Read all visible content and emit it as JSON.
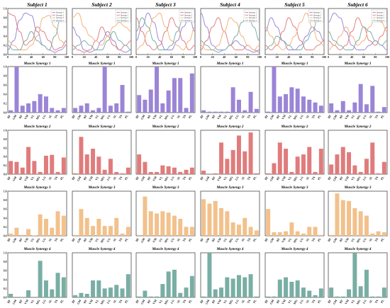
{
  "muscles": [
    "BF",
    "GM",
    "RF",
    "VM",
    "VL",
    "MG",
    "LG",
    "SL",
    "TA",
    "PL"
  ],
  "colors": [
    "#9b85d6",
    "#e07c7c",
    "#f2c18c",
    "#79aea4"
  ],
  "curve_colors": [
    "#9b85d6",
    "#e07c7c",
    "#f2b07a",
    "#79aea4"
  ],
  "legend_labels": [
    "Synergy 1",
    "Synergy 2",
    "Synergy 3",
    "Synergy 4"
  ],
  "x_ticks": [
    "0",
    "20",
    "40",
    "60",
    "80",
    "100"
  ],
  "y_ticks": [
    "0.0",
    "0.2",
    "0.4",
    "0.6",
    "0.8",
    "1.0"
  ],
  "subjects": [
    "Subject 1",
    "Subject 2",
    "Subject 3",
    "Subject 4",
    "Subject 5",
    "Subject 6"
  ],
  "synergy_titles": [
    "Muscle Synergy 1",
    "Muscle Synergy 2",
    "Muscle Synergy 3",
    "Muscle Synergy 4"
  ],
  "chart_data": {
    "type": "bar",
    "categories": [
      "BF",
      "GM",
      "RF",
      "VM",
      "VL",
      "MG",
      "LG",
      "SL",
      "TA",
      "PL"
    ],
    "ylim": [
      0,
      1
    ],
    "activation_curves": {
      "type": "line",
      "xlim": [
        0,
        100
      ],
      "ylim": [
        0,
        1
      ],
      "x": [
        0,
        10,
        20,
        30,
        40,
        50,
        60,
        70,
        80,
        90,
        100
      ],
      "subjects": [
        [
          [
            0.1,
            0.3,
            0.75,
            0.9,
            0.85,
            0.5,
            0.2,
            0.1,
            0.05,
            0.1,
            0.2
          ],
          [
            0.9,
            0.85,
            0.5,
            0.2,
            0.3,
            0.6,
            0.5,
            0.3,
            0.1,
            0.15,
            0.3
          ],
          [
            0.3,
            0.2,
            0.1,
            0.1,
            0.2,
            0.4,
            0.8,
            0.85,
            0.6,
            0.3,
            0.2
          ],
          [
            0.2,
            0.1,
            0.1,
            0.3,
            0.5,
            0.3,
            0.2,
            0.1,
            0.4,
            0.8,
            0.9
          ]
        ],
        [
          [
            0.6,
            0.4,
            0.1,
            0.05,
            0.1,
            0.3,
            0.5,
            0.3,
            0.1,
            0.05,
            0.1
          ],
          [
            0.2,
            0.1,
            0.05,
            0.1,
            0.3,
            0.6,
            0.4,
            0.2,
            0.1,
            0.2,
            0.3
          ],
          [
            0.8,
            0.9,
            0.6,
            0.4,
            0.3,
            0.2,
            0.4,
            0.6,
            0.7,
            0.6,
            0.5
          ],
          [
            0.1,
            0.2,
            0.3,
            0.2,
            0.1,
            0.1,
            0.3,
            0.5,
            0.3,
            0.2,
            0.1
          ]
        ],
        [
          [
            0.3,
            0.6,
            0.9,
            0.7,
            0.3,
            0.1,
            0.1,
            0.3,
            0.6,
            0.8,
            0.5
          ],
          [
            0.8,
            0.5,
            0.2,
            0.1,
            0.2,
            0.5,
            0.8,
            0.6,
            0.3,
            0.1,
            0.2
          ],
          [
            0.1,
            0.2,
            0.5,
            0.8,
            0.9,
            0.6,
            0.3,
            0.2,
            0.1,
            0.3,
            0.6
          ],
          [
            0.5,
            0.8,
            0.6,
            0.3,
            0.1,
            0.1,
            0.2,
            0.5,
            0.8,
            0.9,
            0.7
          ]
        ],
        [
          [
            0.9,
            0.6,
            0.2,
            0.1,
            0.1,
            0.2,
            0.3,
            0.2,
            0.1,
            0.05,
            0.1
          ],
          [
            0.1,
            0.3,
            0.6,
            0.8,
            0.5,
            0.2,
            0.1,
            0.1,
            0.2,
            0.1,
            0.05
          ],
          [
            0.2,
            0.1,
            0.1,
            0.2,
            0.5,
            0.8,
            0.7,
            0.4,
            0.2,
            0.1,
            0.2
          ],
          [
            0.3,
            0.2,
            0.1,
            0.05,
            0.1,
            0.2,
            0.4,
            0.7,
            0.9,
            0.6,
            0.3
          ]
        ],
        [
          [
            0.5,
            0.8,
            0.6,
            0.3,
            0.1,
            0.1,
            0.2,
            0.4,
            0.6,
            0.5,
            0.3
          ],
          [
            0.2,
            0.1,
            0.2,
            0.5,
            0.8,
            0.6,
            0.3,
            0.1,
            0.1,
            0.2,
            0.3
          ],
          [
            0.6,
            0.4,
            0.2,
            0.1,
            0.2,
            0.4,
            0.7,
            0.9,
            0.6,
            0.3,
            0.2
          ],
          [
            0.1,
            0.2,
            0.4,
            0.3,
            0.2,
            0.1,
            0.1,
            0.3,
            0.5,
            0.8,
            0.9
          ]
        ],
        [
          [
            0.7,
            0.9,
            0.8,
            0.5,
            0.2,
            0.1,
            0.1,
            0.2,
            0.3,
            0.2,
            0.1
          ],
          [
            0.3,
            0.2,
            0.1,
            0.2,
            0.5,
            0.8,
            0.6,
            0.3,
            0.2,
            0.4,
            0.6
          ],
          [
            0.1,
            0.2,
            0.4,
            0.6,
            0.4,
            0.2,
            0.3,
            0.6,
            0.8,
            0.7,
            0.5
          ],
          [
            0.5,
            0.3,
            0.2,
            0.1,
            0.1,
            0.3,
            0.6,
            0.5,
            0.3,
            0.2,
            0.3
          ]
        ]
      ]
    },
    "weights": [
      [
        [
          0.05,
          1.0,
          0.15,
          0.2,
          0.25,
          0.4,
          0.35,
          0.1,
          0.05,
          0.1
        ],
        [
          0.3,
          0.28,
          0.15,
          0.62,
          0.3,
          0.05,
          0.42,
          0.44,
          0.05,
          0.38
        ],
        [
          0.05,
          0.18,
          0.02,
          0.15,
          0.01,
          0.48,
          0.38,
          0.18,
          0.55,
          0.45
        ],
        [
          0.08,
          0.0,
          0.01,
          0.16,
          0.0,
          0.82,
          0.38,
          0.18,
          0.55,
          0.45
        ]
      ],
      [
        [
          0.1,
          0.15,
          0.2,
          0.05,
          0.1,
          1.0,
          0.15,
          0.2,
          0.6,
          0.02
        ],
        [
          0.02,
          0.85,
          0.45,
          0.58,
          0.4,
          0.1,
          0.35,
          0.05,
          0.02,
          0.15
        ],
        [
          0.02,
          0.6,
          0.4,
          0.22,
          0.38,
          0.22,
          0.22,
          0.4,
          0.05,
          0.2
        ],
        [
          0.05,
          0.1,
          0.08,
          0.38,
          0.38,
          0.2,
          0.22,
          0.28,
          0.2,
          0.52
        ]
      ],
      [
        [
          0.38,
          0.28,
          0.5,
          1.0,
          0.2,
          0.48,
          0.75,
          0.75,
          0.1,
          0.85
        ],
        [
          0.45,
          0.28,
          0.05,
          0.05,
          0.2,
          0.18,
          0.15,
          0.05,
          0.1,
          0.15
        ],
        [
          0.02,
          0.88,
          0.55,
          0.5,
          0.55,
          0.52,
          0.45,
          0.38,
          0.2,
          0.2
        ],
        [
          0.02,
          0.15,
          0.02,
          0.02,
          0.3,
          0.58,
          0.62,
          0.1,
          0.22,
          0.48
        ]
      ],
      [
        [
          0.05,
          0.02,
          0.02,
          0.02,
          0.02,
          0.55,
          0.28,
          0.05,
          0.45,
          0.08
        ],
        [
          0.08,
          0.0,
          0.02,
          0.72,
          0.35,
          0.55,
          0.88,
          0.52,
          0.95,
          0.02
        ],
        [
          0.82,
          0.72,
          0.78,
          0.62,
          0.55,
          0.3,
          0.25,
          0.4,
          0.2,
          0.12
        ],
        [
          0.02,
          1.0,
          0.18,
          0.22,
          0.45,
          0.42,
          0.5,
          0.45,
          0.52,
          0.02
        ]
      ],
      [
        [
          0.02,
          1.0,
          0.35,
          0.4,
          0.55,
          0.52,
          0.35,
          0.28,
          0.22,
          0.15
        ],
        [
          0.02,
          0.25,
          0.72,
          0.58,
          0.05,
          0.4,
          0.45,
          0.62,
          0.05,
          0.58
        ],
        [
          0.6,
          0.08,
          0.08,
          0.1,
          0.3,
          0.1,
          0.05,
          0.2,
          0.2,
          0.02
        ],
        [
          0.02,
          0.02,
          0.4,
          0.45,
          0.35,
          0.38,
          0.22,
          0.15,
          0.05,
          0.2
        ]
      ],
      [
        [
          0.2,
          0.05,
          0.25,
          0.05,
          0.22,
          0.62,
          0.18,
          0.58,
          0.02,
          0.12
        ],
        [
          0.22,
          0.45,
          0.62,
          0.5,
          0.2,
          0.05,
          0.35,
          0.72,
          0.02,
          0.28
        ],
        [
          0.02,
          0.95,
          0.8,
          0.78,
          0.62,
          0.55,
          0.45,
          0.05,
          0.1,
          0.08
        ],
        [
          0.22,
          0.02,
          0.02,
          0.18,
          1.0,
          0.25,
          0.62,
          0.02,
          0.02,
          0.22
        ]
      ]
    ]
  }
}
